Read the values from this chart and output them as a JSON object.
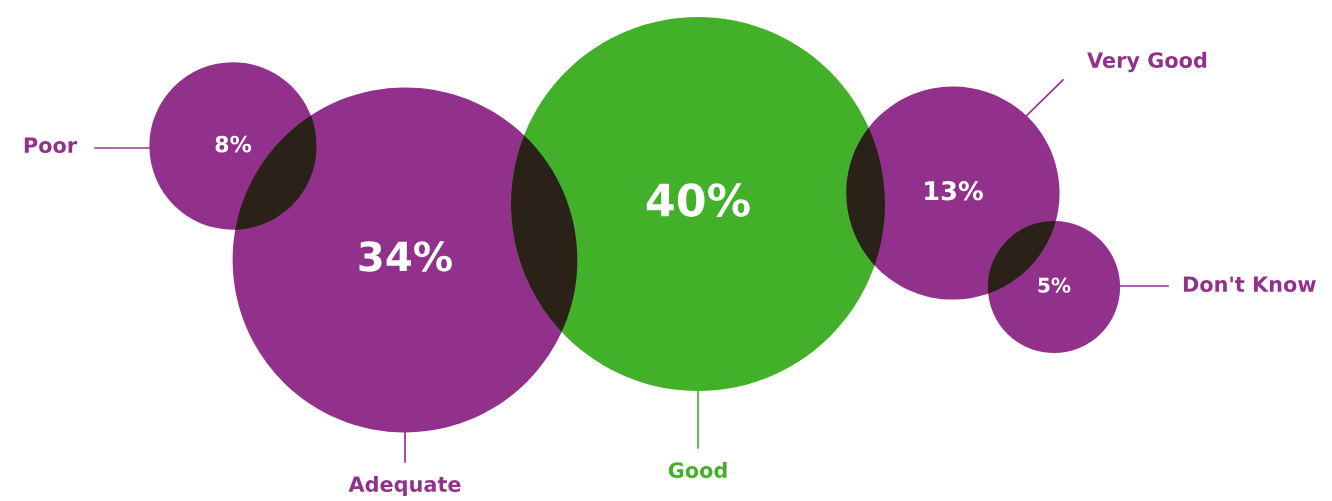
{
  "chart_data": {
    "type": "other",
    "categories": [
      "Poor",
      "Adequate",
      "Good",
      "Very Good",
      "Don't Know"
    ],
    "values": [
      8,
      34,
      40,
      13,
      5
    ],
    "colors": [
      "#92318c",
      "#92318c",
      "#43b02a",
      "#92318c",
      "#92318c"
    ],
    "value_labels": [
      "8%",
      "34%",
      "40%",
      "13%",
      "5%"
    ]
  }
}
